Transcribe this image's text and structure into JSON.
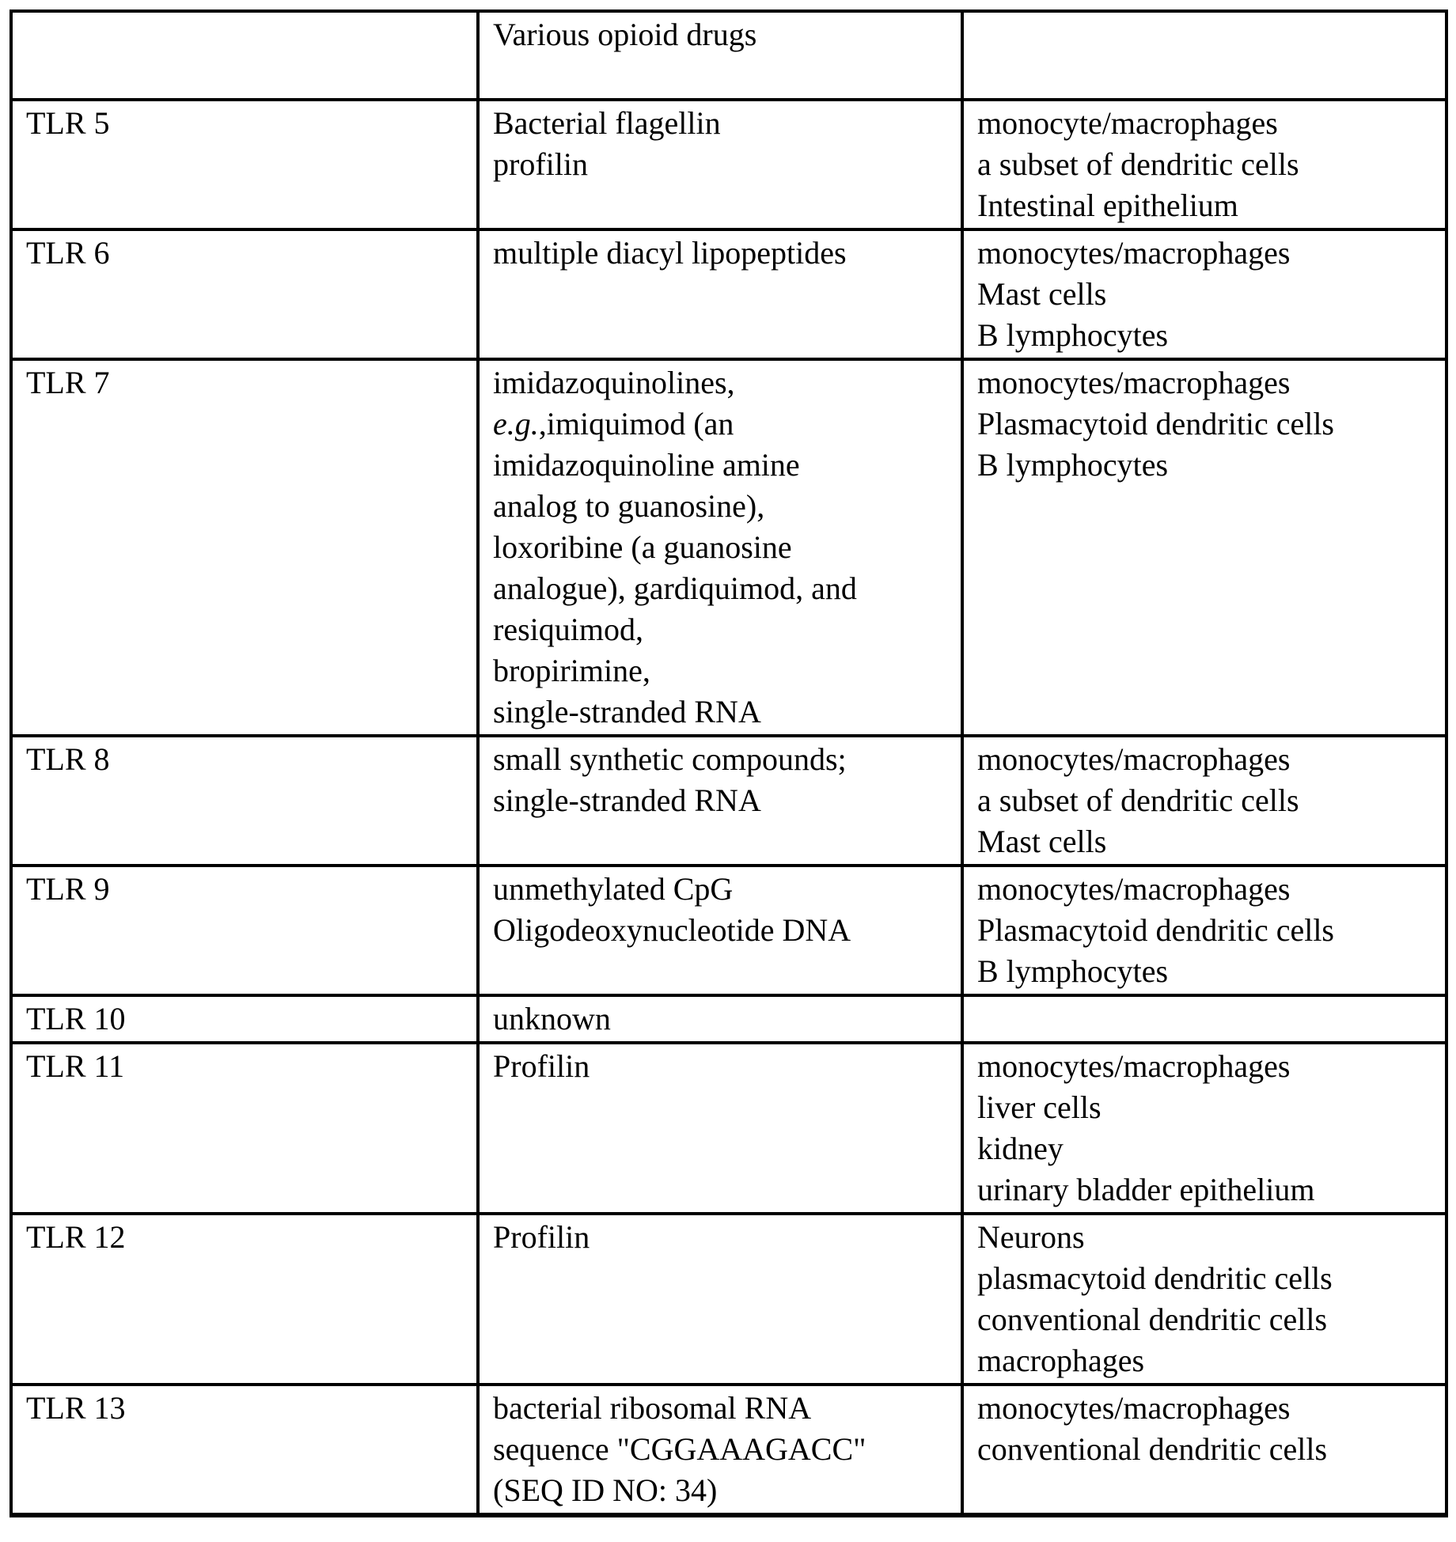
{
  "colors": {
    "text": "#000000",
    "border": "#000000",
    "background": "#ffffff"
  },
  "table": {
    "rows": [
      {
        "receptor": "",
        "ligands": [
          "Various opioid drugs",
          ""
        ],
        "cells": []
      },
      {
        "receptor": "TLR 5",
        "ligands": [
          "Bacterial flagellin",
          "profilin"
        ],
        "cells": [
          "monocyte/macrophages",
          "a subset of dendritic cells",
          "Intestinal epithelium"
        ]
      },
      {
        "receptor": "TLR 6",
        "ligands": [
          "multiple diacyl lipopeptides"
        ],
        "cells": [
          "monocytes/macrophages",
          "Mast cells",
          "B lymphocytes"
        ]
      },
      {
        "receptor": "TLR 7",
        "ligands": [
          "imidazoquinolines,",
          {
            "italic": "e.g.",
            "rest": ",imiquimod (an"
          },
          "imidazoquinoline amine",
          "analog to guanosine),",
          "loxoribine (a guanosine",
          "analogue), gardiquimod, and",
          "resiquimod,",
          "bropirimine,",
          "single-stranded RNA"
        ],
        "cells": [
          "monocytes/macrophages",
          "Plasmacytoid dendritic cells",
          "B lymphocytes"
        ]
      },
      {
        "receptor": "TLR 8",
        "ligands": [
          "small synthetic compounds;",
          "single-stranded RNA"
        ],
        "cells": [
          "monocytes/macrophages",
          "a subset of dendritic cells",
          "Mast cells"
        ]
      },
      {
        "receptor": "TLR 9",
        "ligands": [
          "unmethylated CpG",
          "Oligodeoxynucleotide DNA"
        ],
        "cells": [
          "monocytes/macrophages",
          "Plasmacytoid dendritic cells",
          "B lymphocytes"
        ]
      },
      {
        "receptor": "TLR 10",
        "ligands": [
          "unknown"
        ],
        "cells": []
      },
      {
        "receptor": "TLR 11",
        "ligands": [
          "Profilin"
        ],
        "cells": [
          "monocytes/macrophages",
          "liver cells",
          "kidney",
          "urinary bladder epithelium"
        ]
      },
      {
        "receptor": "TLR 12",
        "ligands": [
          "Profilin"
        ],
        "cells": [
          "Neurons",
          "plasmacytoid dendritic cells",
          "conventional dendritic cells",
          "macrophages"
        ]
      },
      {
        "receptor": "TLR 13",
        "ligands": [
          "bacterial ribosomal RNA",
          "sequence \"CGGAAAGACC\"",
          "(SEQ ID NO: 34)"
        ],
        "cells": [
          "monocytes/macrophages",
          "conventional dendritic cells"
        ]
      }
    ]
  }
}
